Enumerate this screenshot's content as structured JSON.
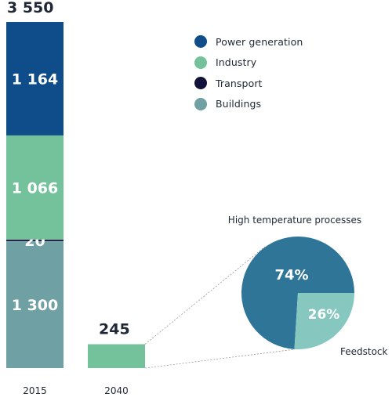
{
  "chart_data": {
    "type": "bar",
    "stacked": true,
    "categories": [
      "2015",
      "2040"
    ],
    "series": [
      {
        "name": "Buildings",
        "color": "#6fa0a3",
        "values": [
          1300,
          null
        ]
      },
      {
        "name": "Transport",
        "color": "#12123a",
        "values": [
          20,
          null
        ]
      },
      {
        "name": "Industry",
        "color": "#74c29b",
        "values": [
          1066,
          245
        ]
      },
      {
        "name": "Power generation",
        "color": "#0f4c8a",
        "values": [
          1164,
          null
        ]
      }
    ],
    "segment_labels_2015": [
      "1 300",
      "20",
      "1 066",
      "1 164"
    ],
    "totals": [
      {
        "category": "2015",
        "value": 3550,
        "label": "3 550"
      },
      {
        "category": "2040",
        "value": 245,
        "label": "245"
      }
    ],
    "ylim": [
      0,
      3550
    ],
    "legend_position": "top-right",
    "grid": false,
    "pie": {
      "title": "High temperature processes",
      "slices": [
        {
          "name": "High temperature processes",
          "value": 74,
          "label": "74%",
          "color": "#2e7597"
        },
        {
          "name": "Feedstock",
          "value": 26,
          "label": "26%",
          "color": "#86c8bf"
        }
      ],
      "callout_label": "Feedstock"
    }
  }
}
